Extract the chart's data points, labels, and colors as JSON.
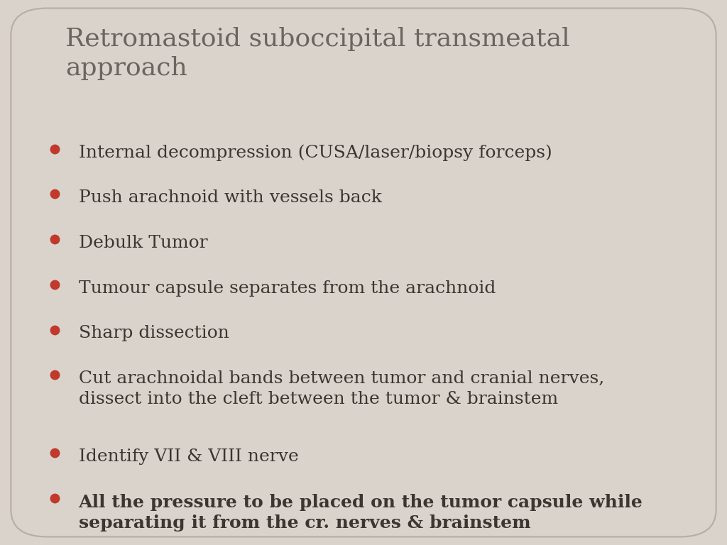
{
  "title": "Retromastoid suboccipital transmeatal\napproach",
  "title_color": "#6b6560",
  "title_fontsize": 26,
  "background_color": "#d9d3cc",
  "bullet_color": "#c0392b",
  "text_color": "#3d3530",
  "bullet_items": [
    {
      "text": "Internal decompression (CUSA/laser/biopsy forceps)",
      "bold": false
    },
    {
      "text": "Push arachnoid with vessels back",
      "bold": false
    },
    {
      "text": "Debulk Tumor",
      "bold": false
    },
    {
      "text": "Tumour capsule separates from the arachnoid",
      "bold": false
    },
    {
      "text": "Sharp dissection",
      "bold": false
    },
    {
      "text": "Cut arachnoidal bands between tumor and cranial nerves,\ndissect into the cleft between the tumor & brainstem",
      "bold": false
    },
    {
      "text": "Identify VII & VIII nerve",
      "bold": false
    },
    {
      "text": "All the pressure to be placed on the tumor capsule while\nseparating it from the cr. nerves & brainstem",
      "bold": true
    }
  ],
  "bullet_fontsize": 18,
  "figsize": [
    10.24,
    7.68
  ],
  "dpi": 100
}
